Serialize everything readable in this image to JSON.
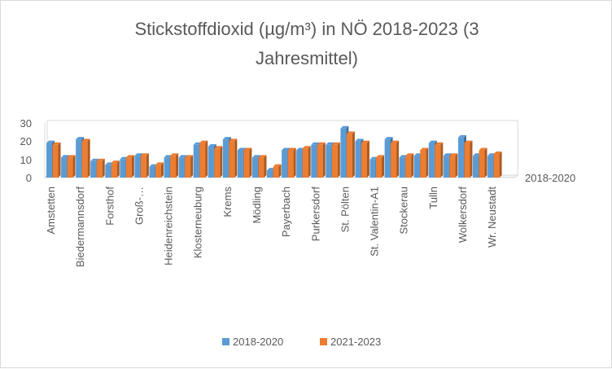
{
  "chart_data": {
    "type": "bar",
    "variant": "3d-clustered-column",
    "title_lines": [
      "Stickstoffdioxid (µg/m³) in NÖ 2018-2023 (3",
      "Jahresmittel)"
    ],
    "categories": [
      "Amstetten",
      "",
      "Biedermannsdorf",
      "",
      "Forsthof",
      "",
      "Groß-…",
      "",
      "Heidenreichstein",
      "",
      "Klosterneuburg",
      "",
      "Krems",
      "",
      "Mödling",
      "",
      "Payerbach",
      "",
      "Purkersdorf",
      "",
      "St. Pölten",
      "",
      "St. Valentin-A1",
      "",
      "Stockerau",
      "",
      "Tulln",
      "",
      "Wolkersdorf",
      "",
      "Wr. Neustadt",
      ""
    ],
    "series": [
      {
        "name": "2018-2020",
        "color": "#5b9bd5",
        "values": [
          19,
          11,
          21,
          9,
          7,
          10,
          12,
          6,
          11,
          11,
          18,
          17,
          21,
          15,
          11,
          4,
          15,
          15,
          18,
          18,
          27,
          20,
          10,
          21,
          11,
          12,
          19,
          12,
          22,
          12,
          12,
          0
        ]
      },
      {
        "name": "2021-2023",
        "color": "#ed7d31",
        "values": [
          18,
          11,
          20,
          9,
          8,
          11,
          12,
          7,
          12,
          11,
          19,
          16,
          20,
          15,
          11,
          6,
          15,
          16,
          18,
          18,
          24,
          19,
          11,
          19,
          12,
          15,
          18,
          12,
          19,
          15,
          13,
          0
        ]
      }
    ],
    "depth_axis_label": "2018-2020",
    "y_ticks": [
      "0",
      "10",
      "20",
      "30"
    ],
    "ylim": [
      0,
      30
    ],
    "legend_position": "bottom",
    "grid": false
  }
}
